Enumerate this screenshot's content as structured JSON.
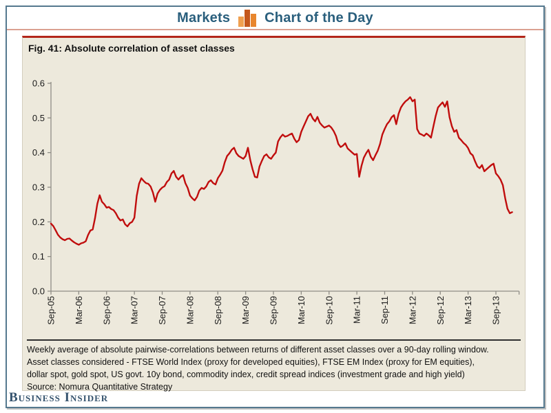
{
  "header": {
    "left_label": "Markets",
    "right_label": "Chart of the Day",
    "icon": "bar-chart-icon",
    "icon_colors": [
      "#f0a050",
      "#c4571c",
      "#e8862e"
    ],
    "text_color": "#2a5f7d"
  },
  "panel": {
    "title": "Fig. 41: Absolute correlation of asset classes",
    "background": "#ede9dc",
    "accent_border": "#b3251a"
  },
  "chart_data": {
    "type": "line",
    "title": "Fig. 41: Absolute correlation of asset classes",
    "series_name": "Weekly average absolute pairwise correlation",
    "line_color": "#c00d0d",
    "axis_color": "#8f8d86",
    "label_color": "#1a1a1a",
    "ylim": [
      0.0,
      0.6
    ],
    "y_ticks": [
      "0.0",
      "0.1",
      "0.2",
      "0.3",
      "0.4",
      "0.5",
      "0.6"
    ],
    "grid": false,
    "legend": "none",
    "x_tick_labels": [
      "Sep-05",
      "Mar-06",
      "Sep-06",
      "Mar-07",
      "Sep-07",
      "Mar-08",
      "Sep-08",
      "Mar-09",
      "Sep-09",
      "Mar-10",
      "Sep-10",
      "Mar-11",
      "Sep-11",
      "Mar-12",
      "Sep-12",
      "Mar-13",
      "Sep-13"
    ],
    "x_tick_indices": [
      0,
      12,
      24,
      36,
      48,
      60,
      72,
      84,
      96,
      108,
      120,
      132,
      144,
      156,
      168,
      180,
      192
    ],
    "x_axis_end_index": 202,
    "values": [
      0.195,
      0.188,
      0.176,
      0.163,
      0.155,
      0.15,
      0.147,
      0.151,
      0.152,
      0.146,
      0.141,
      0.137,
      0.134,
      0.138,
      0.14,
      0.144,
      0.162,
      0.175,
      0.178,
      0.21,
      0.252,
      0.277,
      0.258,
      0.251,
      0.241,
      0.243,
      0.237,
      0.234,
      0.225,
      0.212,
      0.204,
      0.207,
      0.193,
      0.187,
      0.196,
      0.2,
      0.212,
      0.275,
      0.31,
      0.326,
      0.318,
      0.312,
      0.31,
      0.302,
      0.285,
      0.258,
      0.282,
      0.292,
      0.299,
      0.303,
      0.315,
      0.322,
      0.34,
      0.347,
      0.33,
      0.322,
      0.33,
      0.335,
      0.312,
      0.298,
      0.276,
      0.268,
      0.262,
      0.272,
      0.29,
      0.298,
      0.295,
      0.302,
      0.315,
      0.32,
      0.312,
      0.308,
      0.326,
      0.336,
      0.348,
      0.372,
      0.39,
      0.398,
      0.408,
      0.414,
      0.398,
      0.39,
      0.386,
      0.382,
      0.39,
      0.414,
      0.378,
      0.352,
      0.33,
      0.328,
      0.36,
      0.376,
      0.39,
      0.395,
      0.386,
      0.382,
      0.392,
      0.4,
      0.432,
      0.444,
      0.452,
      0.446,
      0.448,
      0.452,
      0.455,
      0.44,
      0.43,
      0.436,
      0.46,
      0.475,
      0.49,
      0.505,
      0.512,
      0.498,
      0.49,
      0.503,
      0.486,
      0.478,
      0.472,
      0.475,
      0.478,
      0.472,
      0.462,
      0.448,
      0.425,
      0.416,
      0.42,
      0.427,
      0.412,
      0.406,
      0.4,
      0.394,
      0.396,
      0.33,
      0.362,
      0.385,
      0.398,
      0.408,
      0.388,
      0.378,
      0.392,
      0.405,
      0.425,
      0.452,
      0.468,
      0.482,
      0.49,
      0.502,
      0.508,
      0.482,
      0.512,
      0.53,
      0.54,
      0.548,
      0.553,
      0.56,
      0.548,
      0.553,
      0.468,
      0.455,
      0.452,
      0.448,
      0.455,
      0.45,
      0.443,
      0.475,
      0.505,
      0.53,
      0.538,
      0.545,
      0.532,
      0.548,
      0.502,
      0.476,
      0.46,
      0.465,
      0.443,
      0.436,
      0.428,
      0.422,
      0.413,
      0.398,
      0.392,
      0.375,
      0.36,
      0.355,
      0.364,
      0.346,
      0.352,
      0.358,
      0.364,
      0.368,
      0.34,
      0.332,
      0.322,
      0.306,
      0.268,
      0.238,
      0.225,
      0.228
    ]
  },
  "caption": {
    "lines": [
      "Weekly average of absolute pairwise-correlations between returns of different asset classes over a 90-day rolling window.",
      "Asset classes considered - FTSE World Index (proxy for developed equities), FTSE EM Index (proxy for EM equities),",
      "dollar spot, gold spot, US govt. 10y bond, commodity index, credit spread indices (investment grade and high yield)"
    ]
  },
  "source": "Source: Nomura Quantitative Strategy",
  "footer": {
    "logo_text": "Business Insider",
    "logo_color": "#35536e"
  }
}
